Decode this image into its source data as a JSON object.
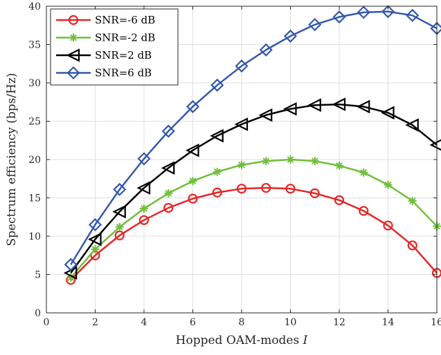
{
  "chart_data": {
    "type": "line",
    "xlabel_text": "Hopped OAM-modes ",
    "xlabel_var": "I",
    "ylabel": "Spectrum efficiency (bps/Hz)",
    "xlim": [
      0,
      16
    ],
    "ylim": [
      0,
      40
    ],
    "xticks": [
      "0",
      "2",
      "4",
      "6",
      "8",
      "10",
      "12",
      "14",
      "16"
    ],
    "yticks": [
      "0",
      "5",
      "10",
      "15",
      "20",
      "25",
      "30",
      "35",
      "40"
    ],
    "grid": true,
    "legend_position": "top-left",
    "x": [
      1,
      2,
      3,
      4,
      5,
      6,
      7,
      8,
      9,
      10,
      11,
      12,
      13,
      14,
      15,
      16
    ],
    "series": [
      {
        "name": "SNR=-6 dB",
        "color": "#e32626",
        "marker": "circle",
        "values": [
          4.3,
          7.5,
          10.1,
          12.1,
          13.7,
          14.9,
          15.7,
          16.2,
          16.3,
          16.2,
          15.6,
          14.7,
          13.3,
          11.4,
          8.8,
          5.2
        ]
      },
      {
        "name": "SNR=-2 dB",
        "color": "#6fbf3c",
        "marker": "asterisk",
        "values": [
          4.6,
          8.3,
          11.2,
          13.6,
          15.6,
          17.2,
          18.4,
          19.3,
          19.8,
          20.0,
          19.8,
          19.2,
          18.3,
          16.7,
          14.6,
          11.3
        ]
      },
      {
        "name": "SNR=2 dB",
        "color": "#000000",
        "marker": "triangle-left",
        "values": [
          5.2,
          9.6,
          13.2,
          16.3,
          18.9,
          21.2,
          23.1,
          24.6,
          25.8,
          26.6,
          27.1,
          27.2,
          26.9,
          26.1,
          24.5,
          21.9
        ]
      },
      {
        "name": "SNR=6 dB",
        "color": "#3457ad",
        "marker": "diamond",
        "values": [
          6.3,
          11.5,
          16.1,
          20.1,
          23.7,
          26.9,
          29.7,
          32.2,
          34.3,
          36.1,
          37.6,
          38.6,
          39.2,
          39.3,
          38.8,
          37.1
        ]
      }
    ]
  }
}
